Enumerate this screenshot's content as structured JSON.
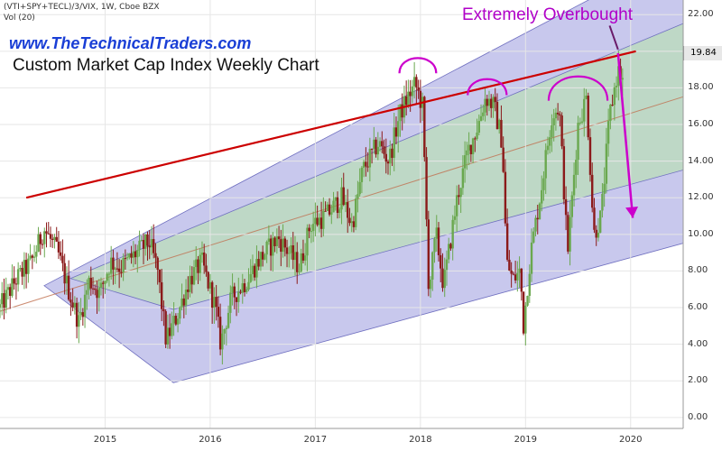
{
  "header": {
    "symbol_line": "(VTI+SPY+TECL)/3/VIX, 1W, Cboe BZX",
    "volume_label": "Vol (20)"
  },
  "website": "www.TheTechnicalTraders.com",
  "chart_title": "Custom Market Cap Index Weekly Chart",
  "annotation": "Extremely Overbought",
  "last_price_label": "19.84",
  "colors": {
    "up_candle": "#6aa84f",
    "down_candle": "#8b1a1a",
    "outer_channel_fill": "#9b9bde",
    "inner_channel_fill": "#b8e0b0",
    "resistance_line": "#cc0000",
    "annotation_magenta": "#cc00cc",
    "website_blue": "#1a3fd6"
  },
  "chart_data": {
    "type": "candlestick",
    "title": "Custom Market Cap Index Weekly Chart",
    "y_axis": {
      "ticks": [
        "22.00",
        "20.00",
        "18.00",
        "16.00",
        "14.00",
        "12.00",
        "10.00",
        "8.00",
        "6.00",
        "4.00",
        "2.00",
        "0.00"
      ],
      "range": [
        -0.6,
        22.8
      ],
      "position": "right"
    },
    "x_axis": {
      "ticks": [
        "2015",
        "2016",
        "2017",
        "2018",
        "2019",
        "2020"
      ],
      "range": [
        2014.0,
        2020.5
      ]
    },
    "last_value": 19.84,
    "price_path": [
      [
        2014.0,
        6.0
      ],
      [
        2014.15,
        7.5
      ],
      [
        2014.3,
        8.5
      ],
      [
        2014.42,
        10.3
      ],
      [
        2014.55,
        9.0
      ],
      [
        2014.65,
        7.0
      ],
      [
        2014.75,
        5.2
      ],
      [
        2014.85,
        7.5
      ],
      [
        2014.95,
        6.8
      ],
      [
        2015.05,
        8.5
      ],
      [
        2015.15,
        8.2
      ],
      [
        2015.3,
        9.0
      ],
      [
        2015.42,
        9.6
      ],
      [
        2015.5,
        8.0
      ],
      [
        2015.58,
        4.2
      ],
      [
        2015.68,
        5.5
      ],
      [
        2015.8,
        7.5
      ],
      [
        2015.92,
        8.5
      ],
      [
        2016.05,
        6.0
      ],
      [
        2016.1,
        4.0
      ],
      [
        2016.2,
        6.5
      ],
      [
        2016.35,
        7.5
      ],
      [
        2016.45,
        8.5
      ],
      [
        2016.55,
        9.2
      ],
      [
        2016.65,
        9.8
      ],
      [
        2016.75,
        9.0
      ],
      [
        2016.85,
        8.2
      ],
      [
        2016.95,
        10.5
      ],
      [
        2017.1,
        11.0
      ],
      [
        2017.25,
        12.0
      ],
      [
        2017.35,
        10.5
      ],
      [
        2017.45,
        13.5
      ],
      [
        2017.6,
        15.0
      ],
      [
        2017.7,
        14.0
      ],
      [
        2017.8,
        16.5
      ],
      [
        2017.88,
        17.5
      ],
      [
        2017.95,
        18.2
      ],
      [
        2018.02,
        17.0
      ],
      [
        2018.08,
        7.0
      ],
      [
        2018.15,
        10.0
      ],
      [
        2018.22,
        7.2
      ],
      [
        2018.35,
        12.0
      ],
      [
        2018.45,
        14.5
      ],
      [
        2018.55,
        16.0
      ],
      [
        2018.62,
        17.5
      ],
      [
        2018.7,
        17.0
      ],
      [
        2018.78,
        15.0
      ],
      [
        2018.82,
        8.5
      ],
      [
        2018.88,
        7.5
      ],
      [
        2018.95,
        8.0
      ],
      [
        2018.98,
        5.0
      ],
      [
        2019.05,
        9.0
      ],
      [
        2019.15,
        12.5
      ],
      [
        2019.25,
        16.5
      ],
      [
        2019.32,
        17.0
      ],
      [
        2019.4,
        9.0
      ],
      [
        2019.5,
        16.0
      ],
      [
        2019.58,
        17.5
      ],
      [
        2019.65,
        10.0
      ],
      [
        2019.72,
        11.0
      ],
      [
        2019.8,
        16.5
      ],
      [
        2019.88,
        19.0
      ],
      [
        2019.93,
        18.3
      ]
    ],
    "channel": {
      "anchor_date": 2015.65,
      "anchor_value": 1.9,
      "lower_start_value": 7.2,
      "lower_start_date": 2014.42,
      "slope_per_year": 1.57,
      "upper_offset": 8.0,
      "middle_offset": 6.0,
      "inner_low_offset": 2.0,
      "inner_high_offset": 10.0
    },
    "resistance_line": {
      "x": [
        2014.25,
        2020.05
      ],
      "y": [
        12.0,
        20.0
      ]
    },
    "annotations": [
      {
        "type": "arc",
        "x": [
          2017.8,
          2018.15
        ],
        "y": 18.8
      },
      {
        "type": "arc",
        "x": [
          2018.45,
          2018.82
        ],
        "y": 17.6
      },
      {
        "type": "arc",
        "x": [
          2019.22,
          2019.78
        ],
        "y": 17.3
      },
      {
        "type": "arrow",
        "from": [
          2019.88,
          19.9
        ],
        "to": [
          2020.02,
          10.9
        ]
      }
    ]
  }
}
